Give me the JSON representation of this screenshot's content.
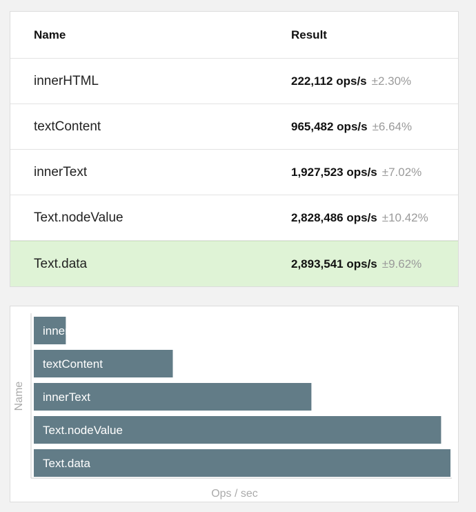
{
  "table": {
    "headers": {
      "name": "Name",
      "result": "Result"
    },
    "rows": [
      {
        "name": "innerHTML",
        "ops": "222,112 ops/s",
        "rme": "±2.30%",
        "fastest": false
      },
      {
        "name": "textContent",
        "ops": "965,482 ops/s",
        "rme": "±6.64%",
        "fastest": false
      },
      {
        "name": "innerText",
        "ops": "1,927,523 ops/s",
        "rme": "±7.02%",
        "fastest": false
      },
      {
        "name": "Text.nodeValue",
        "ops": "2,828,486 ops/s",
        "rme": "±10.42%",
        "fastest": false
      },
      {
        "name": "Text.data",
        "ops": "2,893,541 ops/s",
        "rme": "±9.62%",
        "fastest": true
      }
    ]
  },
  "colors": {
    "bar": "#627c87",
    "fastest_row": "#dff3d6"
  },
  "chart_data": {
    "type": "bar",
    "orientation": "horizontal",
    "categories": [
      "innerHTML",
      "textContent",
      "innerText",
      "Text.nodeValue",
      "Text.data"
    ],
    "values": [
      222112,
      965482,
      1927523,
      2828486,
      2893541
    ],
    "title": "",
    "xlabel": "Ops / sec",
    "ylabel": "Name",
    "xlim": [
      0,
      2893541
    ],
    "grid": false,
    "legend": "none"
  }
}
